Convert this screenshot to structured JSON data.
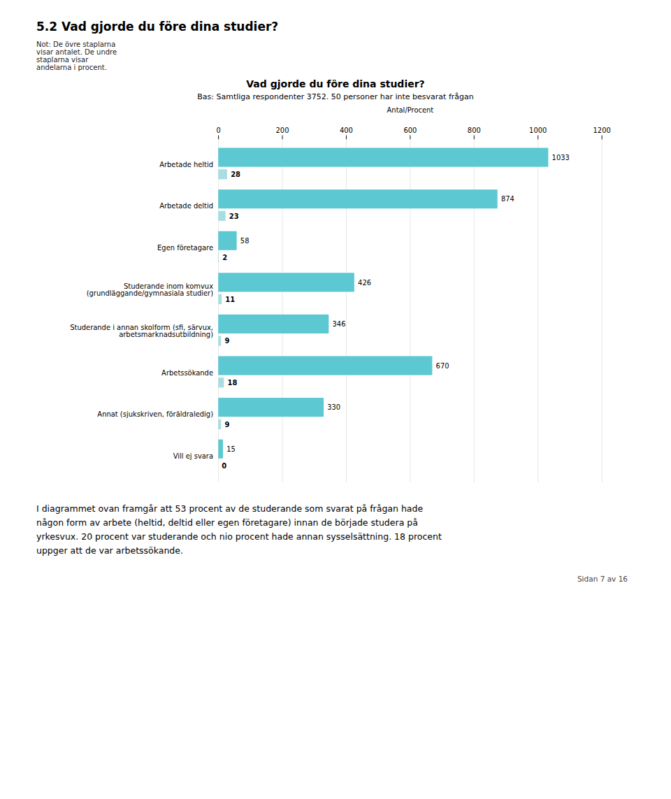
{
  "page_title": "5.2   Vad gjorde du före dina studier?",
  "note": "Not: De övre staplarna\nvisar antalet. De undre\nstaplarna visar\nandelarna i procent.",
  "body_text": "I diagrammet ovan framgår att 53 procent av de studerande som svarat på frågan hade\nnågon form av arbete (heltid, deltid eller egen företagare) innan de började studera på\nyrkesvux. 20 procent var studerande och nio procent hade annan sysselsättning. 18 procent\nuppger att de var arbetssökande.",
  "footer": "Sidan 7 av 16",
  "chart_data": {
    "type": "bar",
    "orientation": "horizontal",
    "title": "Vad gjorde du före dina studier?",
    "subtitle": "Bas: Samtliga respondenter 3752. 50 personer har inte besvarat frågan",
    "x_label": "Antal/Procent",
    "categories": [
      "Arbetade heltid",
      "Arbetade deltid",
      "Egen företagare",
      "Studerande inom komvux\n(grundläggande/gymnasiala studier)",
      "Studerande i annan skolform (sfi, särvux,\narbetsmarknadsutbildning)",
      "Arbetssökande",
      "Annat (sjukskriven, föräldraledig)",
      "Vill ej svara"
    ],
    "series": [
      {
        "color": "#5bc8d2",
        "values": [
          1033,
          874,
          58,
          426,
          346,
          670,
          330,
          15
        ]
      },
      {
        "color": "#a8dde2",
        "values": [
          28,
          23,
          2,
          11,
          9,
          18,
          9,
          0
        ]
      }
    ],
    "xlim": [
      0,
      1200
    ],
    "xticks": [
      0,
      200,
      400,
      600,
      800,
      1000,
      1200
    ],
    "grid": true,
    "data_labels": true
  }
}
